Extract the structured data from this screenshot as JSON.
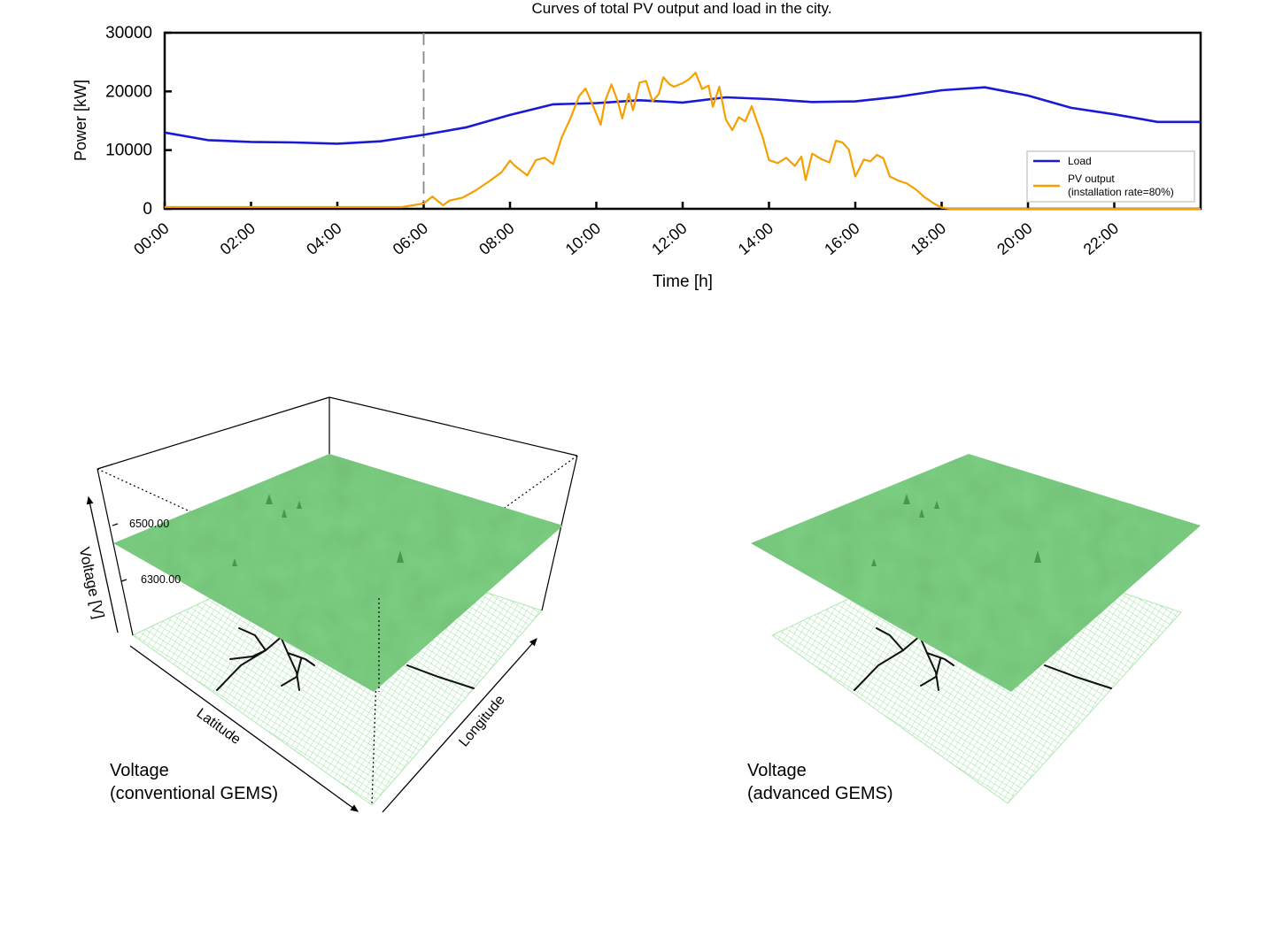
{
  "chart_data": [
    {
      "type": "line",
      "title": "Curves of total PV output and load in the city.",
      "xlabel": "Time [h]",
      "ylabel": "Power [kW]",
      "xlim": [
        0,
        24
      ],
      "ylim": [
        0,
        30000
      ],
      "x_ticks": [
        "00:00",
        "02:00",
        "04:00",
        "06:00",
        "08:00",
        "10:00",
        "12:00",
        "14:00",
        "16:00",
        "18:00",
        "20:00",
        "22:00"
      ],
      "y_ticks": [
        "0",
        "10000",
        "20000",
        "30000"
      ],
      "grid": false,
      "legend_position": "bottom-right",
      "marker_line_at": 6,
      "series": [
        {
          "name": "Load",
          "color": "#1a1ad6",
          "x": [
            0,
            1,
            2,
            3,
            4,
            5,
            6,
            7,
            8,
            9,
            10,
            11,
            12,
            13,
            14,
            15,
            16,
            17,
            18,
            19,
            20,
            21,
            22,
            23,
            24
          ],
          "y": [
            13000,
            11700,
            11400,
            11300,
            11100,
            11500,
            12600,
            13900,
            16000,
            17800,
            18000,
            18500,
            18100,
            19000,
            18700,
            18200,
            18300,
            19100,
            20200,
            20700,
            19300,
            17200,
            16100,
            14800,
            14800
          ]
        },
        {
          "name": "PV output",
          "name_line2": "(installation rate=80%)",
          "color": "#f5a000",
          "x": [
            0,
            5.5,
            6.0,
            6.2,
            6.45,
            6.6,
            6.9,
            7.2,
            7.5,
            7.8,
            8.0,
            8.1,
            8.4,
            8.6,
            8.8,
            9.0,
            9.2,
            9.4,
            9.6,
            9.75,
            10.0,
            10.1,
            10.2,
            10.35,
            10.5,
            10.6,
            10.75,
            10.85,
            11.0,
            11.15,
            11.3,
            11.45,
            11.55,
            11.7,
            11.8,
            12.0,
            12.15,
            12.3,
            12.45,
            12.6,
            12.7,
            12.85,
            13.0,
            13.15,
            13.3,
            13.45,
            13.6,
            13.7,
            13.85,
            14.0,
            14.2,
            14.4,
            14.6,
            14.75,
            14.85,
            15.0,
            15.2,
            15.4,
            15.55,
            15.7,
            15.85,
            16.0,
            16.2,
            16.35,
            16.5,
            16.65,
            16.8,
            17.0,
            17.2,
            17.4,
            17.6,
            17.8,
            18.0,
            18.2,
            18.4,
            20.0,
            24
          ],
          "y": [
            300,
            300,
            900,
            2100,
            600,
            1400,
            1900,
            3100,
            4600,
            6200,
            8200,
            7400,
            5700,
            8300,
            8700,
            7600,
            12200,
            15400,
            19200,
            20500,
            16200,
            14300,
            18300,
            21200,
            18200,
            15400,
            19600,
            16800,
            21500,
            21800,
            18300,
            19600,
            22400,
            21200,
            20800,
            21400,
            22100,
            23200,
            20400,
            21000,
            17400,
            20800,
            15200,
            13400,
            15600,
            14900,
            17500,
            15300,
            12300,
            8300,
            7800,
            8700,
            7300,
            8900,
            4900,
            9400,
            8500,
            7900,
            11600,
            11300,
            10100,
            5500,
            8400,
            8100,
            9200,
            8600,
            5500,
            4800,
            4300,
            3300,
            2000,
            1000,
            200,
            0,
            0,
            0,
            0
          ]
        }
      ]
    }
  ],
  "panels": {
    "left": {
      "z_axis_label": "Voltage [V]",
      "z_ticks": [
        "6500.00",
        "6300.00"
      ],
      "x_axis_label": "Latitude",
      "y_axis_label": "Longitude",
      "caption_line1": "Voltage",
      "caption_line2": "(conventional GEMS)",
      "surface_color": "#7dd183",
      "grid_color": "#b2e6b5"
    },
    "right": {
      "caption_line1": "Voltage",
      "caption_line2": "(advanced GEMS)",
      "surface_color": "#7dd183",
      "grid_color": "#b2e6b5"
    }
  }
}
